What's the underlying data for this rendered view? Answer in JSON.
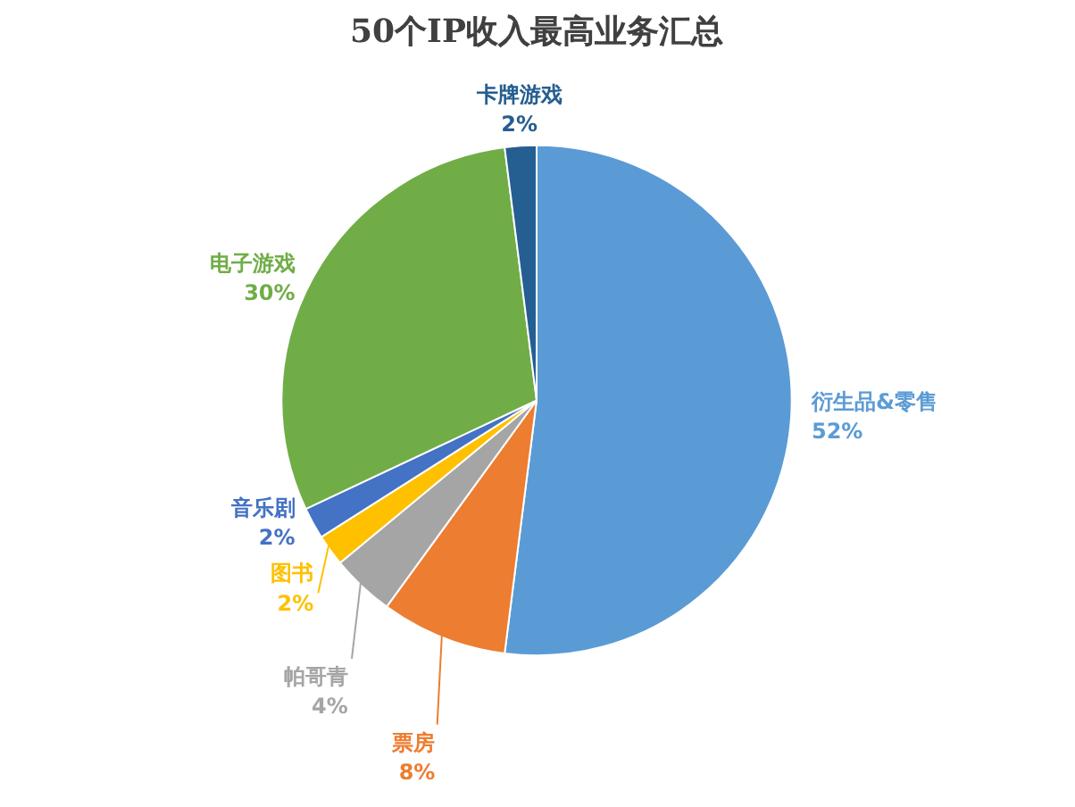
{
  "chart_data": {
    "type": "pie",
    "title": "50个IP收入最高业务汇总",
    "categories": [
      "衍生品&零售",
      "票房",
      "帕哥青",
      "图书",
      "音乐剧",
      "电子游戏",
      "卡牌游戏"
    ],
    "values": [
      52,
      8,
      4,
      2,
      2,
      30,
      2
    ],
    "value_labels": [
      "52%",
      "8%",
      "4%",
      "2%",
      "2%",
      "30%",
      "2%"
    ],
    "colors": [
      "#5b9bd5",
      "#ed7d31",
      "#a5a5a5",
      "#ffc000",
      "#4472c4",
      "#70ad47",
      "#255e91"
    ]
  }
}
